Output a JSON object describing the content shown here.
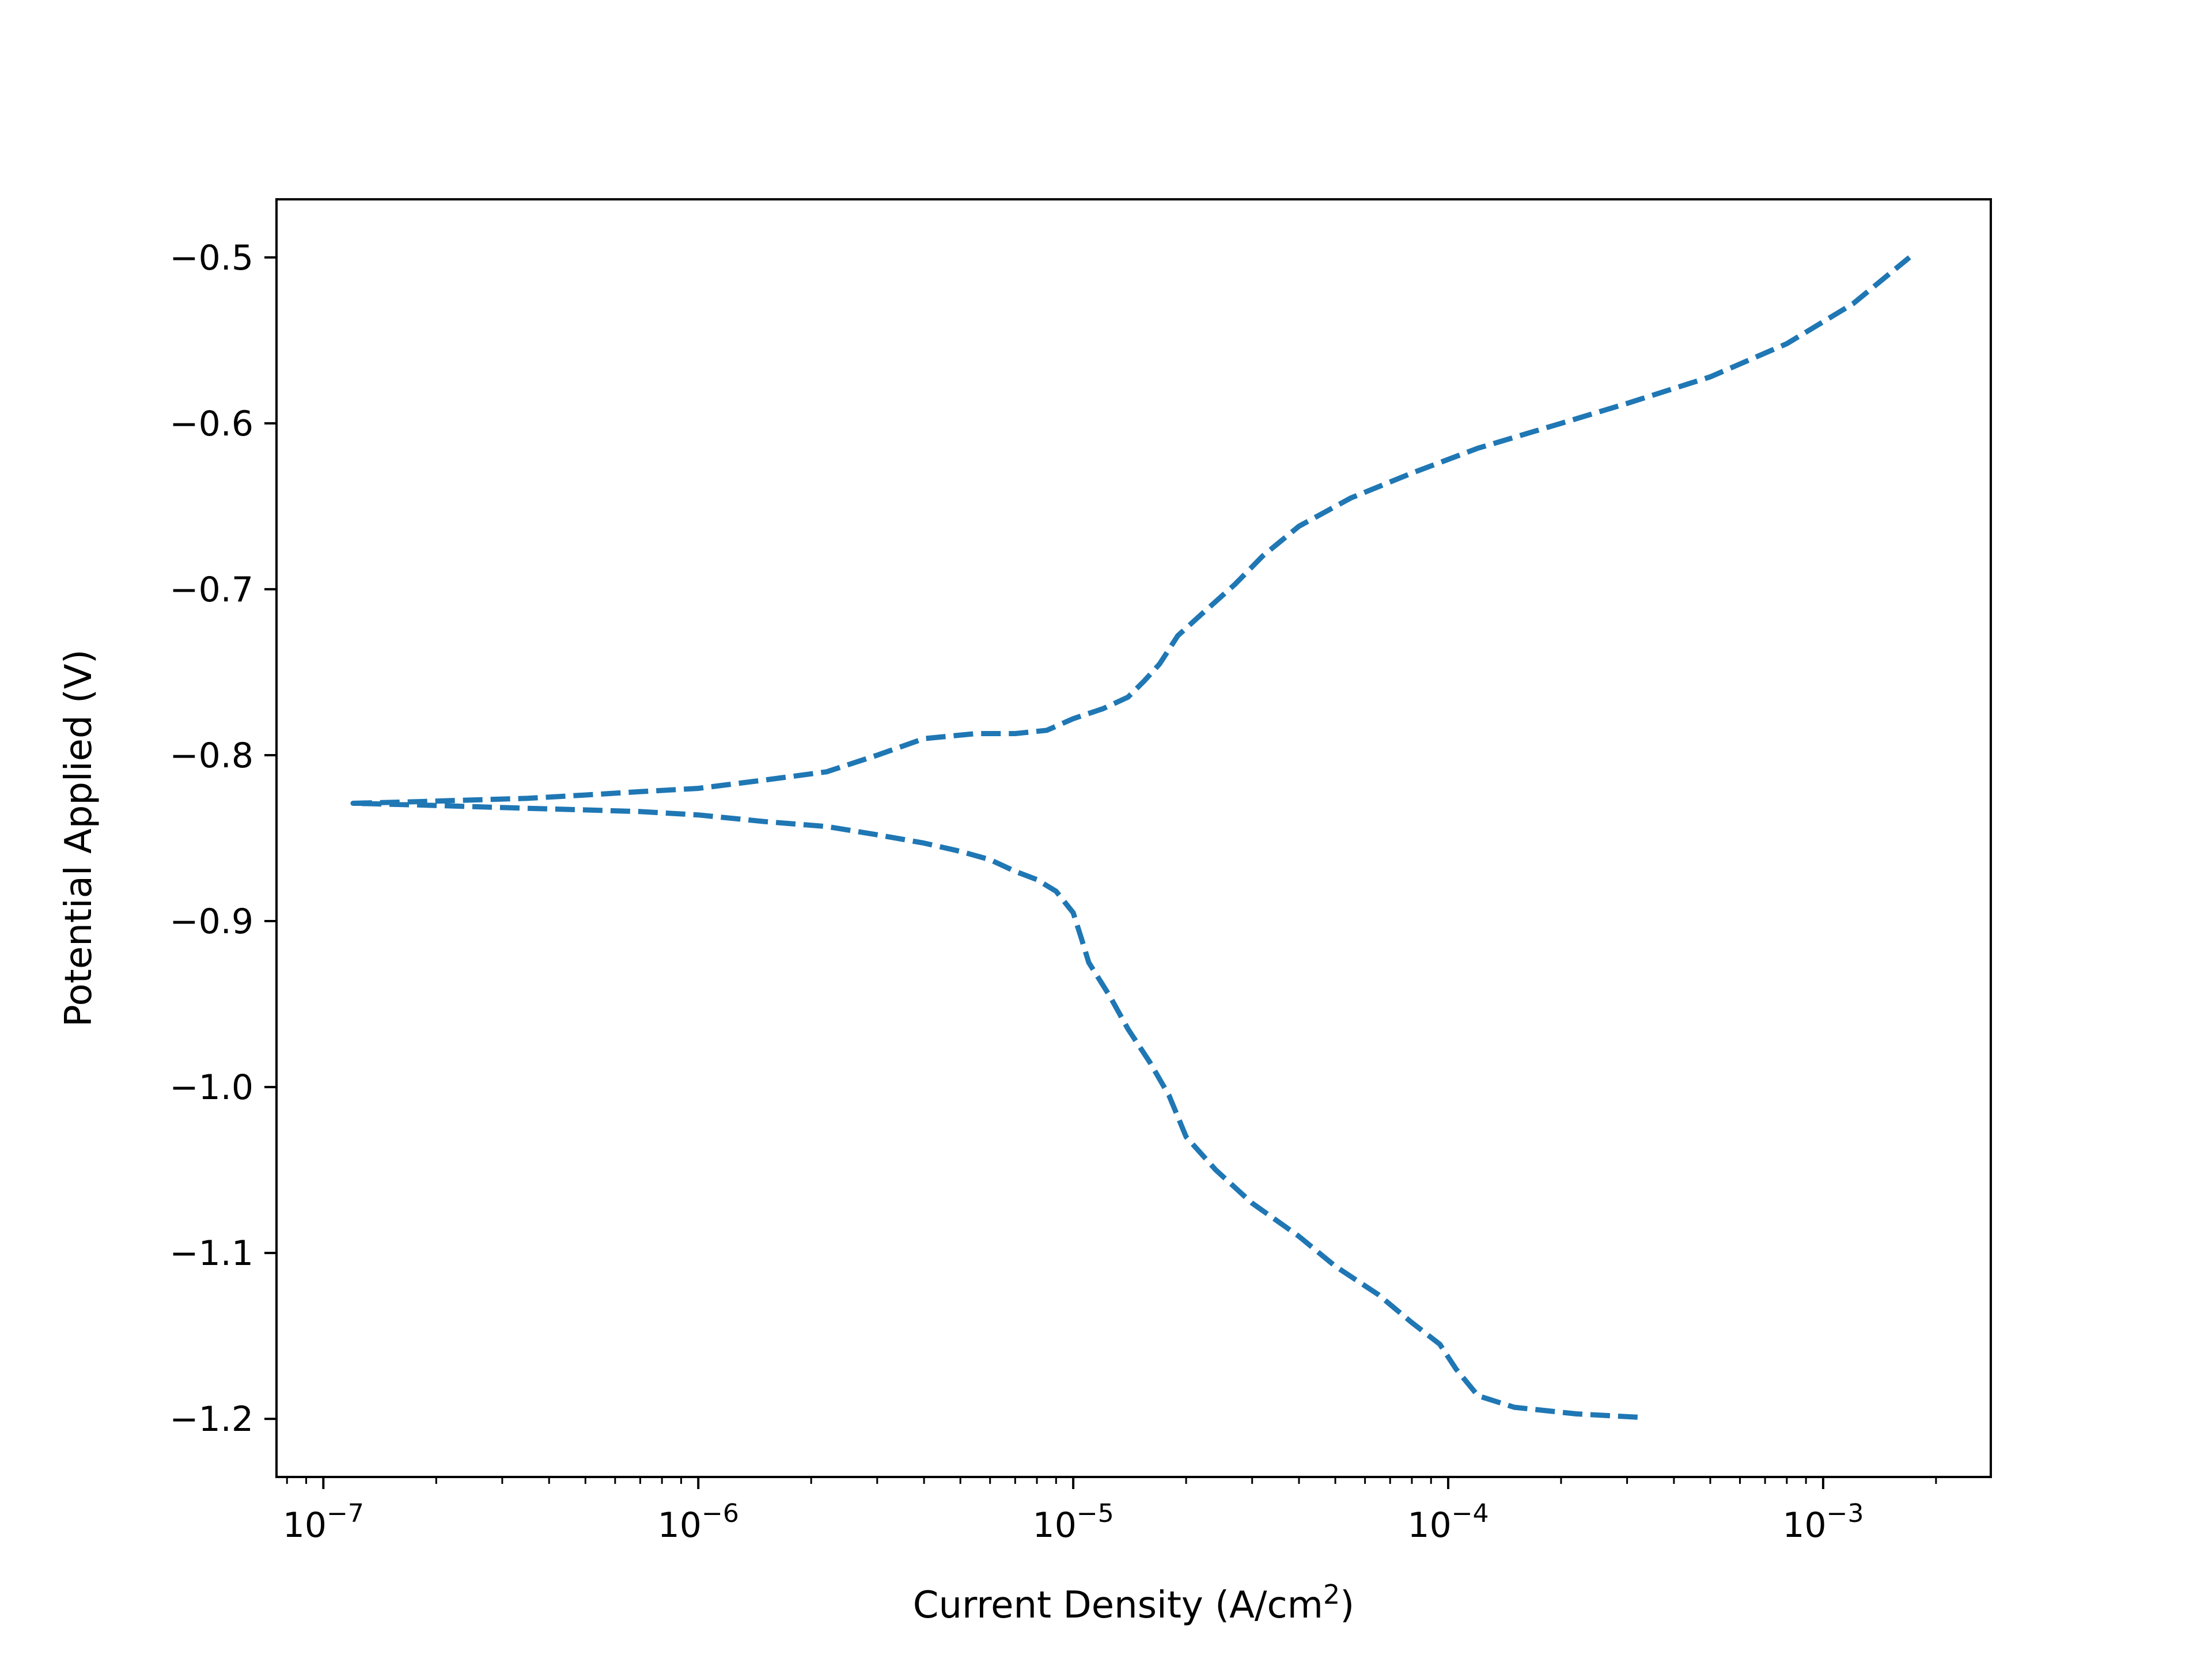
{
  "chart_data": {
    "type": "line",
    "title": "",
    "xlabel": "Current Density (A/cm",
    "xlabel_sup": "2",
    "xlabel_end": ")",
    "ylabel": "Potential Applied (V)",
    "xscale": "log",
    "xlim": [
      7.5e-08,
      0.0028
    ],
    "ylim": [
      -1.235,
      -0.465
    ],
    "x_ticks": [
      {
        "value": 1e-07,
        "base": "10",
        "exp": "−7"
      },
      {
        "value": 1e-06,
        "base": "10",
        "exp": "−6"
      },
      {
        "value": 1e-05,
        "base": "10",
        "exp": "−5"
      },
      {
        "value": 0.0001,
        "base": "10",
        "exp": "−4"
      },
      {
        "value": 0.001,
        "base": "10",
        "exp": "−3"
      }
    ],
    "y_ticks": [
      {
        "value": -0.5,
        "label": "−0.5"
      },
      {
        "value": -0.6,
        "label": "−0.6"
      },
      {
        "value": -0.7,
        "label": "−0.7"
      },
      {
        "value": -0.8,
        "label": "−0.8"
      },
      {
        "value": -0.9,
        "label": "−0.9"
      },
      {
        "value": -1.0,
        "label": "−1.0"
      },
      {
        "value": -1.1,
        "label": "−1.1"
      },
      {
        "value": -1.2,
        "label": "−1.2"
      }
    ],
    "grid": false,
    "line_color": "#1f77b4",
    "line_style": "dashed",
    "series": [
      {
        "x": [
          0.00032,
          0.00022,
          0.00015,
          0.00012,
          0.000105,
          9.5e-05,
          8e-05,
          6.5e-05,
          5e-05,
          4e-05,
          3e-05,
          2.4e-05,
          2e-05,
          1.8e-05,
          1.6e-05,
          1.4e-05,
          1.25e-05,
          1.1e-05,
          1.05e-05,
          1e-05,
          9e-06,
          8e-06,
          7e-06,
          6e-06,
          5e-06,
          4e-06,
          3e-06,
          2.2e-06,
          1.5e-06,
          1e-06,
          7e-07,
          5e-07,
          3.5e-07,
          2.5e-07,
          1.8e-07,
          1.2e-07,
          1.2e-07,
          1.8e-07,
          2.5e-07,
          3.5e-07,
          5e-07,
          7e-07,
          1e-06,
          1.5e-06,
          2.2e-06,
          3e-06,
          4e-06,
          5.5e-06,
          7e-06,
          8.5e-06,
          1e-05,
          1.2e-05,
          1.4e-05,
          1.55e-05,
          1.7e-05,
          1.9e-05,
          2.2e-05,
          2.7e-05,
          3.2e-05,
          4e-05,
          5.5e-05,
          8e-05,
          0.00012,
          0.0002,
          0.0003,
          0.0005,
          0.0008,
          0.0012,
          0.0017
        ],
        "y": [
          -1.199,
          -1.197,
          -1.193,
          -1.186,
          -1.17,
          -1.155,
          -1.142,
          -1.125,
          -1.108,
          -1.09,
          -1.07,
          -1.05,
          -1.03,
          -1.005,
          -0.985,
          -0.965,
          -0.945,
          -0.925,
          -0.91,
          -0.895,
          -0.882,
          -0.875,
          -0.87,
          -0.863,
          -0.858,
          -0.853,
          -0.848,
          -0.843,
          -0.84,
          -0.836,
          -0.834,
          -0.833,
          -0.832,
          -0.831,
          -0.83,
          -0.829,
          -0.829,
          -0.828,
          -0.827,
          -0.826,
          -0.824,
          -0.822,
          -0.82,
          -0.815,
          -0.81,
          -0.8,
          -0.79,
          -0.787,
          -0.787,
          -0.785,
          -0.778,
          -0.772,
          -0.765,
          -0.755,
          -0.745,
          -0.728,
          -0.715,
          -0.697,
          -0.68,
          -0.662,
          -0.645,
          -0.63,
          -0.615,
          -0.6,
          -0.588,
          -0.572,
          -0.552,
          -0.528,
          -0.5
        ]
      }
    ]
  }
}
